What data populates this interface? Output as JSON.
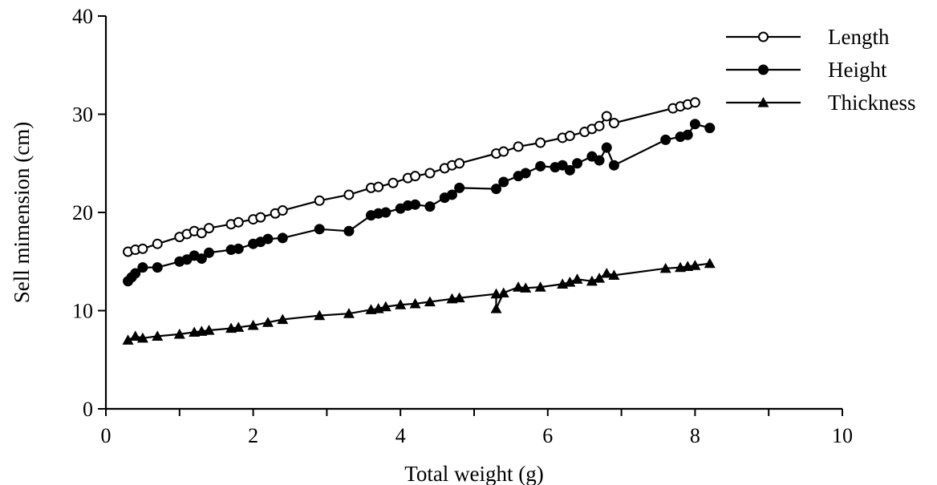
{
  "chart_data": {
    "type": "line",
    "title": "",
    "xlabel": "Total weight (g)",
    "ylabel": "Sell mimension (cm)",
    "xlim": [
      0,
      10
    ],
    "ylim": [
      0,
      40
    ],
    "xticks": [
      0,
      2,
      4,
      6,
      8,
      10
    ],
    "yticks": [
      0,
      10,
      20,
      30,
      40
    ],
    "grid": false,
    "legend_position": "top-right",
    "colors": {
      "line": "#000000",
      "open_marker_fill": "#ffffff",
      "filled_marker": "#000000"
    },
    "series": [
      {
        "name": "Length",
        "marker": "open-circle",
        "points": [
          [
            0.3,
            16.0
          ],
          [
            0.4,
            16.2
          ],
          [
            0.5,
            16.3
          ],
          [
            0.7,
            16.8
          ],
          [
            1.0,
            17.5
          ],
          [
            1.1,
            17.8
          ],
          [
            1.2,
            18.1
          ],
          [
            1.3,
            17.9
          ],
          [
            1.4,
            18.4
          ],
          [
            1.7,
            18.8
          ],
          [
            1.8,
            19.0
          ],
          [
            2.0,
            19.3
          ],
          [
            2.1,
            19.5
          ],
          [
            2.3,
            19.9
          ],
          [
            2.4,
            20.2
          ],
          [
            2.9,
            21.2
          ],
          [
            3.3,
            21.8
          ],
          [
            3.6,
            22.5
          ],
          [
            3.7,
            22.6
          ],
          [
            3.9,
            23.0
          ],
          [
            4.1,
            23.5
          ],
          [
            4.2,
            23.7
          ],
          [
            4.4,
            24.0
          ],
          [
            4.6,
            24.5
          ],
          [
            4.7,
            24.8
          ],
          [
            4.8,
            25.0
          ],
          [
            5.3,
            26.0
          ],
          [
            5.4,
            26.2
          ],
          [
            5.6,
            26.7
          ],
          [
            5.9,
            27.1
          ],
          [
            6.2,
            27.6
          ],
          [
            6.3,
            27.8
          ],
          [
            6.5,
            28.2
          ],
          [
            6.6,
            28.5
          ],
          [
            6.7,
            28.8
          ],
          [
            6.8,
            29.8
          ],
          [
            6.9,
            29.1
          ],
          [
            7.7,
            30.6
          ],
          [
            7.8,
            30.8
          ],
          [
            7.9,
            31.0
          ],
          [
            8.0,
            31.2
          ]
        ]
      },
      {
        "name": "Height",
        "marker": "filled-circle",
        "points": [
          [
            0.3,
            13.0
          ],
          [
            0.35,
            13.4
          ],
          [
            0.4,
            13.8
          ],
          [
            0.5,
            14.4
          ],
          [
            0.7,
            14.4
          ],
          [
            1.0,
            15.0
          ],
          [
            1.1,
            15.2
          ],
          [
            1.2,
            15.6
          ],
          [
            1.3,
            15.3
          ],
          [
            1.4,
            15.9
          ],
          [
            1.7,
            16.2
          ],
          [
            1.8,
            16.3
          ],
          [
            2.0,
            16.8
          ],
          [
            2.1,
            17.0
          ],
          [
            2.2,
            17.3
          ],
          [
            2.4,
            17.4
          ],
          [
            2.9,
            18.3
          ],
          [
            3.3,
            18.1
          ],
          [
            3.6,
            19.7
          ],
          [
            3.7,
            19.9
          ],
          [
            3.8,
            20.0
          ],
          [
            4.0,
            20.4
          ],
          [
            4.1,
            20.7
          ],
          [
            4.2,
            20.8
          ],
          [
            4.4,
            20.6
          ],
          [
            4.6,
            21.5
          ],
          [
            4.7,
            21.8
          ],
          [
            4.8,
            22.5
          ],
          [
            5.3,
            22.4
          ],
          [
            5.4,
            23.1
          ],
          [
            5.6,
            23.7
          ],
          [
            5.7,
            24.0
          ],
          [
            5.9,
            24.7
          ],
          [
            6.1,
            24.6
          ],
          [
            6.2,
            24.8
          ],
          [
            6.3,
            24.3
          ],
          [
            6.4,
            25.0
          ],
          [
            6.6,
            25.7
          ],
          [
            6.7,
            25.3
          ],
          [
            6.8,
            26.6
          ],
          [
            6.9,
            24.8
          ],
          [
            7.6,
            27.4
          ],
          [
            7.8,
            27.7
          ],
          [
            7.9,
            27.9
          ],
          [
            8.0,
            29.0
          ],
          [
            8.2,
            28.6
          ]
        ]
      },
      {
        "name": "Thickness",
        "marker": "filled-triangle",
        "points": [
          [
            0.3,
            7.0
          ],
          [
            0.4,
            7.4
          ],
          [
            0.5,
            7.2
          ],
          [
            0.7,
            7.4
          ],
          [
            1.0,
            7.6
          ],
          [
            1.2,
            7.8
          ],
          [
            1.3,
            7.9
          ],
          [
            1.4,
            8.0
          ],
          [
            1.7,
            8.2
          ],
          [
            1.8,
            8.3
          ],
          [
            2.0,
            8.5
          ],
          [
            2.2,
            8.8
          ],
          [
            2.4,
            9.1
          ],
          [
            2.9,
            9.5
          ],
          [
            3.3,
            9.7
          ],
          [
            3.6,
            10.1
          ],
          [
            3.7,
            10.2
          ],
          [
            3.8,
            10.4
          ],
          [
            4.0,
            10.6
          ],
          [
            4.2,
            10.7
          ],
          [
            4.4,
            10.9
          ],
          [
            4.7,
            11.2
          ],
          [
            4.8,
            11.3
          ],
          [
            5.3,
            11.7
          ],
          [
            5.3,
            10.2
          ],
          [
            5.4,
            11.8
          ],
          [
            5.6,
            12.4
          ],
          [
            5.7,
            12.3
          ],
          [
            5.9,
            12.4
          ],
          [
            6.2,
            12.7
          ],
          [
            6.3,
            12.9
          ],
          [
            6.4,
            13.2
          ],
          [
            6.6,
            13.0
          ],
          [
            6.7,
            13.3
          ],
          [
            6.8,
            13.8
          ],
          [
            6.9,
            13.6
          ],
          [
            7.6,
            14.3
          ],
          [
            7.8,
            14.4
          ],
          [
            7.9,
            14.5
          ],
          [
            8.0,
            14.6
          ],
          [
            8.2,
            14.8
          ]
        ]
      }
    ]
  }
}
